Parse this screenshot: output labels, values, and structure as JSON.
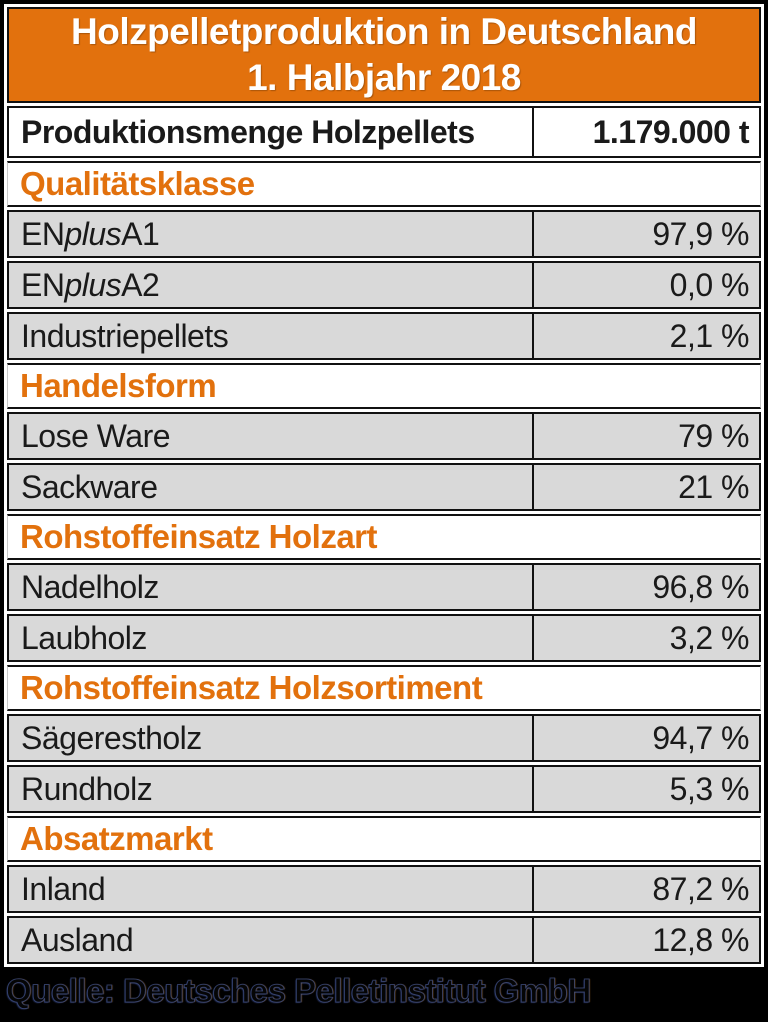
{
  "theme": {
    "accent_orange": "#E2710D",
    "row_gray": "#D9D9D9",
    "border_black": "#111111",
    "title_text": "#FFFFFF",
    "footer_bg": "#000000"
  },
  "title": {
    "line1": "Holzpelletproduktion in Deutschland",
    "line2": "1. Halbjahr 2018"
  },
  "summary_row": {
    "label": "Produktionsmenge Holzpellets",
    "value": "1.179.000 t"
  },
  "sections": [
    {
      "heading": "Qualitätsklasse",
      "rows": [
        {
          "label_parts": [
            {
              "text": "EN"
            },
            {
              "text": "plus",
              "italic": true
            },
            {
              "text": " A1"
            }
          ],
          "value": "97,9 %"
        },
        {
          "label_parts": [
            {
              "text": "EN"
            },
            {
              "text": "plus",
              "italic": true
            },
            {
              "text": " A2"
            }
          ],
          "value": "0,0 %"
        },
        {
          "label_parts": [
            {
              "text": "Industriepellets"
            }
          ],
          "value": "2,1 %"
        }
      ]
    },
    {
      "heading": "Handelsform",
      "rows": [
        {
          "label_parts": [
            {
              "text": "Lose Ware"
            }
          ],
          "value": "79 %"
        },
        {
          "label_parts": [
            {
              "text": "Sackware"
            }
          ],
          "value": "21 %"
        }
      ]
    },
    {
      "heading": "Rohstoffeinsatz Holzart",
      "rows": [
        {
          "label_parts": [
            {
              "text": "Nadelholz"
            }
          ],
          "value": "96,8 %"
        },
        {
          "label_parts": [
            {
              "text": "Laubholz"
            }
          ],
          "value": "3,2 %"
        }
      ]
    },
    {
      "heading": "Rohstoffeinsatz Holzsortiment",
      "rows": [
        {
          "label_parts": [
            {
              "text": "Sägerestholz"
            }
          ],
          "value": "94,7 %"
        },
        {
          "label_parts": [
            {
              "text": "Rundholz"
            }
          ],
          "value": "5,3 %"
        }
      ]
    },
    {
      "heading": "Absatzmarkt",
      "rows": [
        {
          "label_parts": [
            {
              "text": "Inland"
            }
          ],
          "value": "87,2 %"
        },
        {
          "label_parts": [
            {
              "text": "Ausland"
            }
          ],
          "value": "12,8 %"
        }
      ]
    }
  ],
  "footer": {
    "source": "Quelle: Deutsches Pelletinstitut GmbH"
  },
  "chart_data": {
    "type": "table",
    "title": "Holzpelletproduktion in Deutschland 1. Halbjahr 2018",
    "summary": {
      "label": "Produktionsmenge Holzpellets",
      "value": 1179000,
      "unit": "t",
      "display": "1.179.000 t"
    },
    "groups": [
      {
        "name": "Qualitätsklasse",
        "unit": "%",
        "rows": [
          [
            "ENplus A1",
            97.9
          ],
          [
            "ENplus A2",
            0.0
          ],
          [
            "Industriepellets",
            2.1
          ]
        ]
      },
      {
        "name": "Handelsform",
        "unit": "%",
        "rows": [
          [
            "Lose Ware",
            79
          ],
          [
            "Sackware",
            21
          ]
        ]
      },
      {
        "name": "Rohstoffeinsatz Holzart",
        "unit": "%",
        "rows": [
          [
            "Nadelholz",
            96.8
          ],
          [
            "Laubholz",
            3.2
          ]
        ]
      },
      {
        "name": "Rohstoffeinsatz Holzsortiment",
        "unit": "%",
        "rows": [
          [
            "Sägerestholz",
            94.7
          ],
          [
            "Rundholz",
            5.3
          ]
        ]
      },
      {
        "name": "Absatzmarkt",
        "unit": "%",
        "rows": [
          [
            "Inland",
            87.2
          ],
          [
            "Ausland",
            12.8
          ]
        ]
      }
    ],
    "source": "Quelle: Deutsches Pelletinstitut GmbH",
    "layout": {
      "label_column_align": "left",
      "value_column_align": "right",
      "grid": true
    }
  }
}
